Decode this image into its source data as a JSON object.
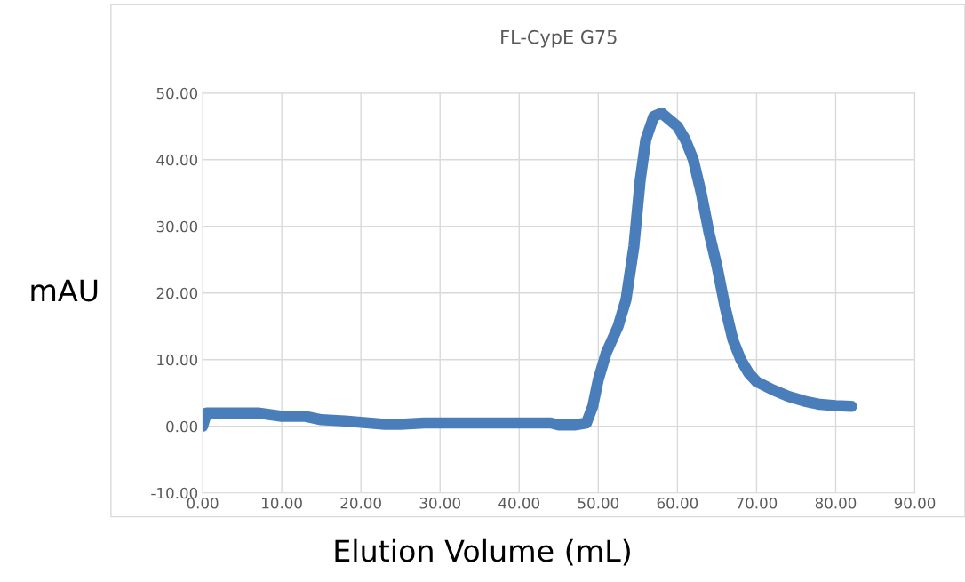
{
  "chart_data": {
    "type": "line",
    "title": "FL-CypE G75",
    "xlabel": "Elution Volume (mL)",
    "ylabel": "mAU",
    "xlim": [
      0,
      90
    ],
    "ylim": [
      -10,
      50
    ],
    "xticks": [
      {
        "value": 0,
        "label": "0.00"
      },
      {
        "value": 10,
        "label": "10.00"
      },
      {
        "value": 20,
        "label": "20.00"
      },
      {
        "value": 30,
        "label": "30.00"
      },
      {
        "value": 40,
        "label": "40.00"
      },
      {
        "value": 50,
        "label": "50.00"
      },
      {
        "value": 60,
        "label": "60.00"
      },
      {
        "value": 70,
        "label": "70.00"
      },
      {
        "value": 80,
        "label": "80.00"
      },
      {
        "value": 90,
        "label": "90.00"
      }
    ],
    "yticks": [
      {
        "value": -10,
        "label": "-10.00"
      },
      {
        "value": 0,
        "label": "0.00"
      },
      {
        "value": 10,
        "label": "10.00"
      },
      {
        "value": 20,
        "label": "20.00"
      },
      {
        "value": 30,
        "label": "30.00"
      },
      {
        "value": 40,
        "label": "40.00"
      },
      {
        "value": 50,
        "label": "50.00"
      }
    ],
    "grid": true,
    "legend": false,
    "marker": "none",
    "line_style": "solid",
    "series": [
      {
        "color": "#4a7ebb",
        "x": [
          0,
          0.5,
          1,
          5,
          7,
          10,
          13,
          15,
          18,
          20,
          23,
          25,
          28,
          35,
          40,
          44,
          45,
          47,
          48.5,
          49.3,
          50,
          51,
          52.5,
          53.5,
          54.5,
          55.3,
          56,
          57,
          58,
          59,
          60,
          61,
          62,
          63,
          64,
          65,
          66,
          67,
          68,
          69,
          70,
          72,
          74,
          76,
          78,
          80,
          82
        ],
        "values": [
          0,
          2,
          2,
          2,
          2,
          1.5,
          1.5,
          1.0,
          0.8,
          0.6,
          0.3,
          0.3,
          0.5,
          0.5,
          0.5,
          0.5,
          0.2,
          0.2,
          0.5,
          3,
          7,
          11,
          15,
          19,
          27,
          37,
          43,
          46.5,
          47,
          46,
          45,
          43,
          40,
          35,
          29,
          24,
          18,
          13,
          10,
          8,
          6.7,
          5.5,
          4.5,
          3.8,
          3.3,
          3.1,
          3.0
        ]
      }
    ]
  }
}
